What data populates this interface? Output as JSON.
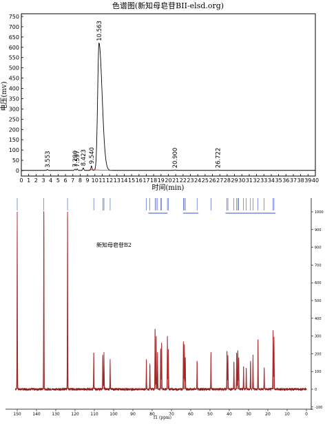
{
  "chart_data": [
    {
      "type": "line",
      "title": "色谱图(新知母皂苷BII-elsd.org)",
      "xlabel": "时间(min)",
      "ylabel": "电压(mv)",
      "xlim": [
        0,
        40
      ],
      "ylim": [
        -20,
        750
      ],
      "x_ticks": [
        0,
        1,
        2,
        3,
        4,
        5,
        6,
        7,
        8,
        9,
        10,
        11,
        12,
        13,
        14,
        15,
        16,
        17,
        18,
        19,
        20,
        21,
        22,
        23,
        24,
        25,
        26,
        27,
        28,
        29,
        30,
        31,
        32,
        33,
        34,
        35,
        36,
        37,
        38,
        39,
        40
      ],
      "y_ticks": [
        0,
        50,
        100,
        150,
        200,
        250,
        300,
        350,
        400,
        450,
        500,
        550,
        600,
        650,
        700,
        750
      ],
      "grid": false,
      "peaks": [
        {
          "label": "3.553",
          "x": 3.553,
          "y": 4
        },
        {
          "label": "7.290",
          "x": 7.29,
          "y": 6
        },
        {
          "label": "7.597",
          "x": 7.597,
          "y": 7
        },
        {
          "label": "8.423",
          "x": 8.423,
          "y": 12
        },
        {
          "label": "9.540",
          "x": 9.54,
          "y": 22
        },
        {
          "label": "10.563",
          "x": 10.563,
          "y": 620
        },
        {
          "label": "20.900",
          "x": 20.9,
          "y": 2
        },
        {
          "label": "26.722",
          "x": 26.722,
          "y": 2
        }
      ]
    },
    {
      "type": "line",
      "title": "",
      "annotation": "新知母皂苷B2",
      "xlabel": "f1 (ppm)",
      "xlim": [
        150,
        0
      ],
      "ylim": [
        -100,
        1000
      ],
      "x_ticks": [
        150,
        140,
        130,
        120,
        110,
        100,
        90,
        80,
        70,
        60,
        50,
        40,
        30,
        20,
        10,
        0
      ],
      "y_ticks": [
        -100,
        0,
        100,
        200,
        300,
        400,
        500,
        600,
        700,
        800,
        900,
        1000
      ],
      "grid": false,
      "peaks": [
        {
          "ppm": 150.0,
          "intensity": 1000
        },
        {
          "ppm": 136.2,
          "intensity": 1000
        },
        {
          "ppm": 123.9,
          "intensity": 1000
        },
        {
          "ppm": 110.3,
          "intensity": 205
        },
        {
          "ppm": 105.6,
          "intensity": 195
        },
        {
          "ppm": 105.0,
          "intensity": 210
        },
        {
          "ppm": 101.8,
          "intensity": 170
        },
        {
          "ppm": 83.0,
          "intensity": 165
        },
        {
          "ppm": 81.2,
          "intensity": 145
        },
        {
          "ppm": 78.5,
          "intensity": 340
        },
        {
          "ppm": 77.9,
          "intensity": 300
        },
        {
          "ppm": 77.2,
          "intensity": 210
        },
        {
          "ppm": 75.6,
          "intensity": 230
        },
        {
          "ppm": 75.1,
          "intensity": 260
        },
        {
          "ppm": 72.1,
          "intensity": 300
        },
        {
          "ppm": 71.6,
          "intensity": 225
        },
        {
          "ppm": 63.8,
          "intensity": 270
        },
        {
          "ppm": 63.3,
          "intensity": 250
        },
        {
          "ppm": 62.8,
          "intensity": 180
        },
        {
          "ppm": 56.7,
          "intensity": 160
        },
        {
          "ppm": 49.5,
          "intensity": 210
        },
        {
          "ppm": 41.2,
          "intensity": 215
        },
        {
          "ppm": 40.7,
          "intensity": 190
        },
        {
          "ppm": 37.6,
          "intensity": 155
        },
        {
          "ppm": 36.2,
          "intensity": 205
        },
        {
          "ppm": 35.6,
          "intensity": 215
        },
        {
          "ppm": 35.1,
          "intensity": 175
        },
        {
          "ppm": 32.6,
          "intensity": 125
        },
        {
          "ppm": 31.2,
          "intensity": 120
        },
        {
          "ppm": 29.0,
          "intensity": 160
        },
        {
          "ppm": 27.7,
          "intensity": 195
        },
        {
          "ppm": 25.1,
          "intensity": 280
        },
        {
          "ppm": 21.9,
          "intensity": 120
        },
        {
          "ppm": 17.3,
          "intensity": 330
        },
        {
          "ppm": 16.8,
          "intensity": 295
        }
      ]
    }
  ]
}
